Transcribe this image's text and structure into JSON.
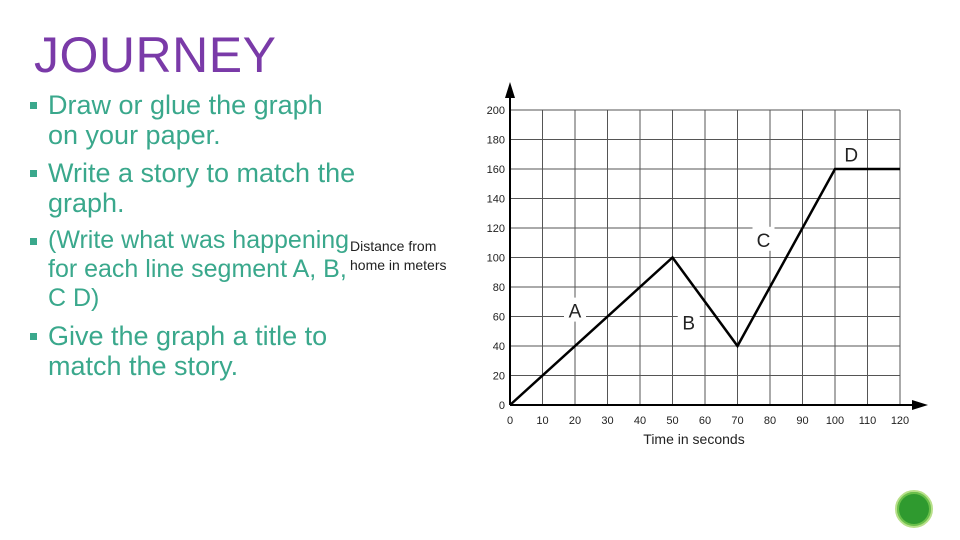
{
  "slide": {
    "title": "JOURNEY",
    "bullets": [
      "Draw or glue the graph on your paper.",
      "Write a story to match the graph.",
      "(Write what was happening for each line segment A, B, C D)",
      "Give the graph a title to match the story."
    ]
  },
  "colors": {
    "title": "#7a3aa8",
    "bullets": "#3aa88c",
    "line": "#000000",
    "grid": "#555555",
    "segment_labels": "#222222",
    "nav_button": "#2f9a2f"
  },
  "chart_data": {
    "type": "line",
    "title": "",
    "xlabel": "Time in seconds",
    "ylabel": "Distance from home in meters",
    "xlim": [
      0,
      120
    ],
    "ylim": [
      0,
      200
    ],
    "x_ticks": [
      0,
      10,
      20,
      30,
      40,
      50,
      60,
      70,
      80,
      90,
      100,
      110,
      120
    ],
    "y_ticks": [
      0,
      20,
      40,
      60,
      80,
      100,
      120,
      140,
      160,
      180,
      200
    ],
    "grid": true,
    "series": [
      {
        "x": [
          0,
          50,
          70,
          100,
          120
        ],
        "y": [
          0,
          100,
          40,
          160,
          160
        ]
      }
    ],
    "annotations": [
      {
        "label": "A",
        "x": 20,
        "y": 64
      },
      {
        "label": "B",
        "x": 55,
        "y": 56
      },
      {
        "label": "C",
        "x": 78,
        "y": 112
      },
      {
        "label": "D",
        "x": 105,
        "y": 170
      }
    ]
  },
  "nav": {
    "icon": "circle-button"
  }
}
